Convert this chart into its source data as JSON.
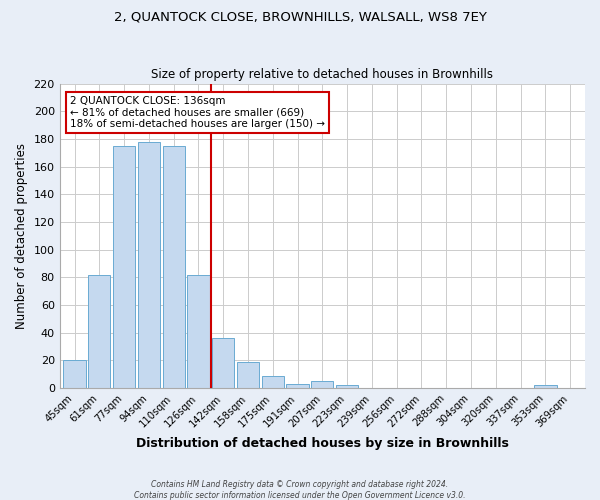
{
  "title": "2, QUANTOCK CLOSE, BROWNHILLS, WALSALL, WS8 7EY",
  "subtitle": "Size of property relative to detached houses in Brownhills",
  "xlabel": "Distribution of detached houses by size in Brownhills",
  "ylabel": "Number of detached properties",
  "bar_labels": [
    "45sqm",
    "61sqm",
    "77sqm",
    "94sqm",
    "110sqm",
    "126sqm",
    "142sqm",
    "158sqm",
    "175sqm",
    "191sqm",
    "207sqm",
    "223sqm",
    "239sqm",
    "256sqm",
    "272sqm",
    "288sqm",
    "304sqm",
    "320sqm",
    "337sqm",
    "353sqm",
    "369sqm"
  ],
  "bar_values": [
    20,
    82,
    175,
    178,
    175,
    82,
    36,
    19,
    9,
    3,
    5,
    2,
    0,
    0,
    0,
    0,
    0,
    0,
    0,
    2,
    0
  ],
  "bar_color": "#c5d9ef",
  "bar_edge_color": "#6aabd2",
  "reference_line_label": "2 QUANTOCK CLOSE: 136sqm",
  "annotation_line1": "← 81% of detached houses are smaller (669)",
  "annotation_line2": "18% of semi-detached houses are larger (150) →",
  "annotation_box_color": "#ffffff",
  "annotation_box_edge": "#cc0000",
  "reference_line_color": "#cc0000",
  "ylim": [
    0,
    220
  ],
  "yticks": [
    0,
    20,
    40,
    60,
    80,
    100,
    120,
    140,
    160,
    180,
    200,
    220
  ],
  "footer_line1": "Contains HM Land Registry data © Crown copyright and database right 2024.",
  "footer_line2": "Contains public sector information licensed under the Open Government Licence v3.0.",
  "background_color": "#e8eef7",
  "plot_background": "#ffffff"
}
